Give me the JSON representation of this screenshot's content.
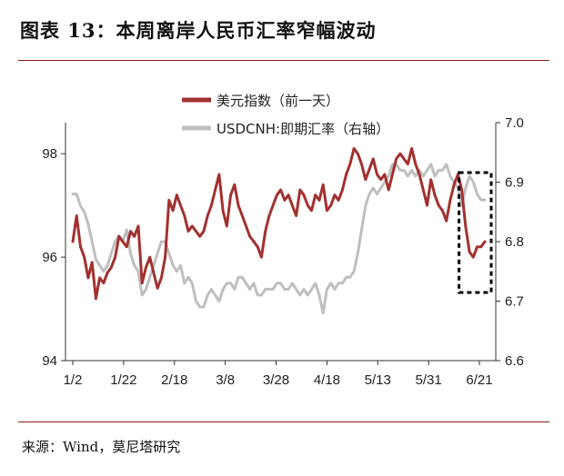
{
  "title": "图表 13：本周离岸人民币汇率窄幅波动",
  "source": "来源：Wind，莫尼塔研究",
  "colors": {
    "usd_index": "#A2312F",
    "usdcnh": "#BFBFBF",
    "title_rule": "#8A1B1B",
    "highlight_box": "#000000"
  },
  "chart_data": {
    "type": "line",
    "x_tick_labels": [
      "1/2",
      "1/22",
      "2/18",
      "3/8",
      "3/28",
      "4/18",
      "5/13",
      "5/31",
      "6/21"
    ],
    "y_left": {
      "ylim": [
        94,
        98.6
      ],
      "ticks": [
        "94",
        "96",
        "98"
      ]
    },
    "y_right": {
      "ylim": [
        6.6,
        7.0
      ],
      "ticks": [
        "6.6",
        "6.7",
        "6.8",
        "6.9",
        "7.0"
      ]
    },
    "legend_position": "top-center",
    "annotations": [
      "dashed box highlighting the last ~2 weeks of both series"
    ],
    "series": [
      {
        "name": "美元指数（前一天）",
        "axis": "left",
        "values": [
          96.3,
          96.8,
          96.2,
          96.0,
          95.6,
          95.9,
          95.2,
          95.6,
          95.5,
          95.7,
          95.8,
          96.0,
          96.4,
          96.3,
          96.2,
          96.5,
          96.4,
          96.6,
          95.5,
          95.8,
          96.0,
          95.7,
          95.4,
          95.6,
          96.0,
          97.1,
          96.9,
          97.2,
          97.0,
          96.8,
          96.5,
          96.6,
          96.5,
          96.4,
          96.5,
          96.8,
          97.0,
          97.3,
          97.6,
          96.9,
          96.6,
          97.2,
          97.4,
          97.0,
          96.8,
          96.6,
          96.4,
          96.3,
          96.2,
          96.0,
          96.5,
          96.8,
          97.0,
          97.2,
          97.3,
          97.1,
          97.2,
          97.0,
          96.8,
          97.3,
          97.2,
          97.0,
          96.9,
          97.2,
          97.1,
          97.4,
          96.9,
          97.0,
          97.2,
          97.1,
          97.3,
          97.6,
          97.8,
          98.1,
          98.0,
          97.8,
          97.5,
          97.7,
          97.9,
          97.6,
          97.5,
          97.6,
          97.3,
          97.6,
          97.9,
          98.0,
          97.9,
          97.8,
          98.1,
          97.8,
          97.6,
          97.3,
          97.0,
          97.5,
          97.2,
          97.0,
          96.9,
          96.7,
          97.1,
          97.4,
          97.6,
          97.3,
          96.6,
          96.1,
          96.0,
          96.2,
          96.2,
          96.3
        ]
      },
      {
        "name": "USDCNH:即期汇率（右轴）",
        "axis": "right",
        "values": [
          6.88,
          6.88,
          6.86,
          6.85,
          6.83,
          6.8,
          6.77,
          6.76,
          6.75,
          6.76,
          6.78,
          6.8,
          6.81,
          6.8,
          6.82,
          6.78,
          6.76,
          6.75,
          6.71,
          6.72,
          6.74,
          6.76,
          6.78,
          6.8,
          6.8,
          6.78,
          6.76,
          6.75,
          6.76,
          6.73,
          6.74,
          6.73,
          6.7,
          6.69,
          6.69,
          6.71,
          6.72,
          6.71,
          6.7,
          6.72,
          6.73,
          6.73,
          6.72,
          6.74,
          6.74,
          6.73,
          6.72,
          6.73,
          6.71,
          6.71,
          6.72,
          6.72,
          6.72,
          6.73,
          6.73,
          6.72,
          6.72,
          6.73,
          6.72,
          6.71,
          6.72,
          6.71,
          6.72,
          6.73,
          6.71,
          6.68,
          6.72,
          6.73,
          6.72,
          6.73,
          6.73,
          6.74,
          6.74,
          6.75,
          6.78,
          6.82,
          6.86,
          6.88,
          6.89,
          6.88,
          6.89,
          6.9,
          6.91,
          6.93,
          6.93,
          6.92,
          6.92,
          6.91,
          6.92,
          6.91,
          6.92,
          6.91,
          6.92,
          6.93,
          6.91,
          6.92,
          6.92,
          6.93,
          6.91,
          6.9,
          6.89,
          6.86,
          6.89,
          6.91,
          6.9,
          6.88,
          6.87,
          6.87
        ]
      }
    ]
  }
}
